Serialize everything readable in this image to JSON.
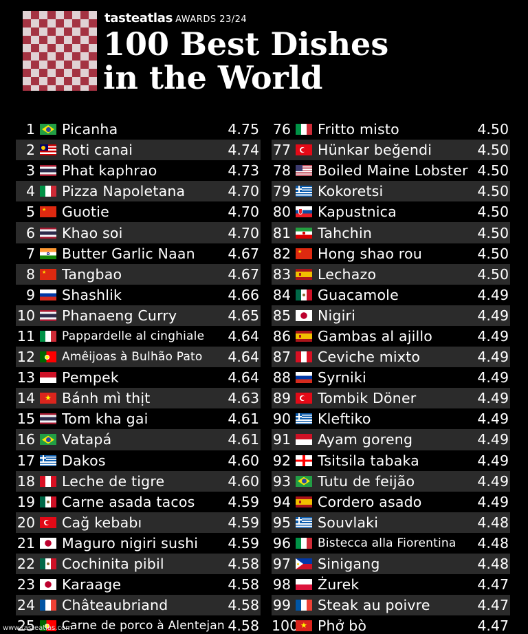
{
  "header": {
    "brand": "tasteatlas",
    "awards": "AWARDS 23/24",
    "title_line1": "100 Best Dishes",
    "title_line2": "in the World"
  },
  "colors": {
    "background": "#000000",
    "row_alt": "#2b2b2b",
    "logo_red": "#b23848",
    "logo_pink": "#f4e4e6"
  },
  "footer": {
    "url": "www.tasteatlas.com"
  },
  "left_column": [
    {
      "rank": "1",
      "flag": "brazil",
      "name": "Picanha",
      "score": "4.75"
    },
    {
      "rank": "2",
      "flag": "malaysia",
      "name": "Roti canai",
      "score": "4.74"
    },
    {
      "rank": "3",
      "flag": "thailand",
      "name": "Phat kaphrao",
      "score": "4.73"
    },
    {
      "rank": "4",
      "flag": "italy",
      "name": "Pizza Napoletana",
      "score": "4.70"
    },
    {
      "rank": "5",
      "flag": "china",
      "name": "Guotie",
      "score": "4.70"
    },
    {
      "rank": "6",
      "flag": "thailand",
      "name": "Khao soi",
      "score": "4.70"
    },
    {
      "rank": "7",
      "flag": "india",
      "name": "Butter Garlic Naan",
      "score": "4.67"
    },
    {
      "rank": "8",
      "flag": "china",
      "name": "Tangbao",
      "score": "4.67"
    },
    {
      "rank": "9",
      "flag": "russia",
      "name": "Shashlik",
      "score": "4.66"
    },
    {
      "rank": "10",
      "flag": "thailand",
      "name": "Phanaeng Curry",
      "score": "4.65"
    },
    {
      "rank": "11",
      "flag": "italy",
      "name": "Pappardelle al cinghiale",
      "score": "4.64"
    },
    {
      "rank": "12",
      "flag": "portugal",
      "name": "Amêijoas à Bulhão Pato",
      "score": "4.64"
    },
    {
      "rank": "13",
      "flag": "indonesia",
      "name": "Pempek",
      "score": "4.64"
    },
    {
      "rank": "14",
      "flag": "vietnam",
      "name": "Bánh mì thịt",
      "score": "4.63"
    },
    {
      "rank": "15",
      "flag": "thailand",
      "name": "Tom kha gai",
      "score": "4.61"
    },
    {
      "rank": "16",
      "flag": "brazil",
      "name": "Vatapá",
      "score": "4.61"
    },
    {
      "rank": "17",
      "flag": "greece",
      "name": "Dakos",
      "score": "4.60"
    },
    {
      "rank": "18",
      "flag": "peru",
      "name": "Leche de tigre",
      "score": "4.60"
    },
    {
      "rank": "19",
      "flag": "mexico",
      "name": "Carne asada tacos",
      "score": "4.59"
    },
    {
      "rank": "20",
      "flag": "turkey",
      "name": "Cağ kebabı",
      "score": "4.59"
    },
    {
      "rank": "21",
      "flag": "japan",
      "name": "Maguro nigiri sushi",
      "score": "4.59"
    },
    {
      "rank": "22",
      "flag": "mexico",
      "name": "Cochinita pibil",
      "score": "4.58"
    },
    {
      "rank": "23",
      "flag": "japan",
      "name": "Karaage",
      "score": "4.58"
    },
    {
      "rank": "24",
      "flag": "france",
      "name": "Châteaubriand",
      "score": "4.58"
    },
    {
      "rank": "25",
      "flag": "portugal",
      "name": "Carne de porco à Alentejana",
      "score": "4.58"
    }
  ],
  "right_column": [
    {
      "rank": "76",
      "flag": "italy",
      "name": "Fritto misto",
      "score": "4.50"
    },
    {
      "rank": "77",
      "flag": "turkey",
      "name": "Hünkar beğendi",
      "score": "4.50"
    },
    {
      "rank": "78",
      "flag": "usa",
      "name": "Boiled Maine Lobster",
      "score": "4.50"
    },
    {
      "rank": "79",
      "flag": "greece",
      "name": "Kokoretsi",
      "score": "4.50"
    },
    {
      "rank": "80",
      "flag": "slovakia",
      "name": "Kapustnica",
      "score": "4.50"
    },
    {
      "rank": "81",
      "flag": "iran",
      "name": "Tahchin",
      "score": "4.50"
    },
    {
      "rank": "82",
      "flag": "china",
      "name": "Hong shao rou",
      "score": "4.50"
    },
    {
      "rank": "83",
      "flag": "spain",
      "name": "Lechazo",
      "score": "4.50"
    },
    {
      "rank": "84",
      "flag": "mexico",
      "name": "Guacamole",
      "score": "4.49"
    },
    {
      "rank": "85",
      "flag": "japan",
      "name": "Nigiri",
      "score": "4.49"
    },
    {
      "rank": "86",
      "flag": "spain",
      "name": "Gambas al ajillo",
      "score": "4.49"
    },
    {
      "rank": "87",
      "flag": "peru",
      "name": "Ceviche mixto",
      "score": "4.49"
    },
    {
      "rank": "88",
      "flag": "russia",
      "name": "Syrniki",
      "score": "4.49"
    },
    {
      "rank": "89",
      "flag": "turkey",
      "name": "Tombik Döner",
      "score": "4.49"
    },
    {
      "rank": "90",
      "flag": "greece",
      "name": "Kleftiko",
      "score": "4.49"
    },
    {
      "rank": "91",
      "flag": "indonesia",
      "name": "Ayam goreng",
      "score": "4.49"
    },
    {
      "rank": "92",
      "flag": "georgia",
      "name": "Tsitsila tabaka",
      "score": "4.49"
    },
    {
      "rank": "93",
      "flag": "brazil",
      "name": "Tutu de feijão",
      "score": "4.49"
    },
    {
      "rank": "94",
      "flag": "spain",
      "name": "Cordero asado",
      "score": "4.49"
    },
    {
      "rank": "95",
      "flag": "greece",
      "name": "Souvlaki",
      "score": "4.48"
    },
    {
      "rank": "96",
      "flag": "italy",
      "name": "Bistecca alla Fiorentina",
      "score": "4.48"
    },
    {
      "rank": "97",
      "flag": "philippines",
      "name": "Sinigang",
      "score": "4.48"
    },
    {
      "rank": "98",
      "flag": "poland",
      "name": "Żurek",
      "score": "4.47"
    },
    {
      "rank": "99",
      "flag": "france",
      "name": "Steak au poivre",
      "score": "4.47"
    },
    {
      "rank": "100",
      "flag": "vietnam",
      "name": "Phở bò",
      "score": "4.47"
    }
  ]
}
